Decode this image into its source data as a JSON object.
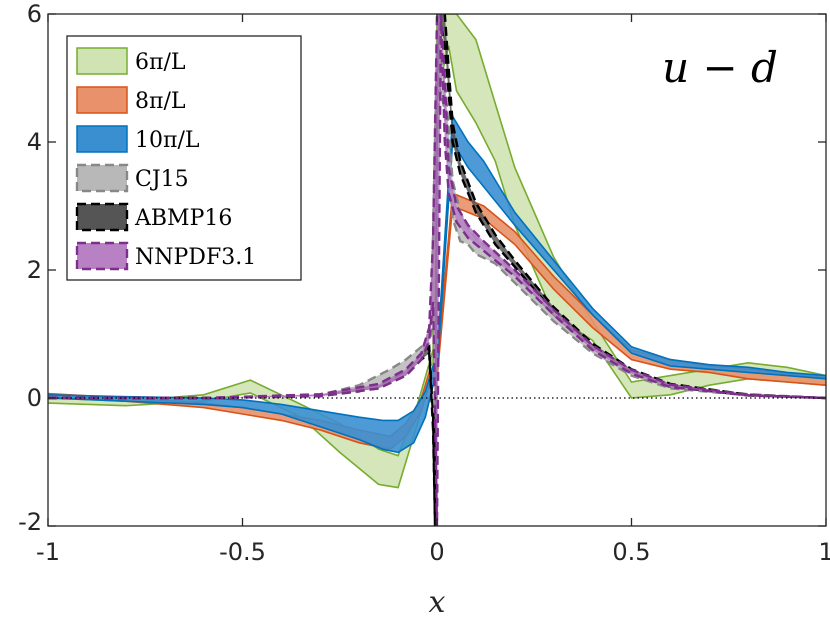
{
  "chart_data": {
    "type": "area",
    "title": "",
    "annotation": "u − d",
    "xlabel": "x",
    "ylabel": "",
    "xlim": [
      -1,
      1
    ],
    "ylim": [
      -2,
      6
    ],
    "xticks": [
      "-1",
      "-0.5",
      "0",
      "0.5",
      "1"
    ],
    "yticks": [
      "-2",
      "0",
      "2",
      "4",
      "6"
    ],
    "xtick_values": [
      -1,
      -0.5,
      0,
      0.5,
      1
    ],
    "ytick_values": [
      -2,
      0,
      2,
      4,
      6
    ],
    "legend_position": "top-left",
    "zero_line": "dotted",
    "series": [
      {
        "name": "6π/L",
        "color": "#77AC30",
        "fill": "#cfe3b3",
        "dashed": false,
        "x": [
          -1.0,
          -0.8,
          -0.6,
          -0.48,
          -0.35,
          -0.25,
          -0.15,
          -0.1,
          -0.05,
          -0.01,
          0.0,
          0.01,
          0.03,
          0.05,
          0.1,
          0.15,
          0.2,
          0.3,
          0.4,
          0.5,
          0.6,
          0.7,
          0.8,
          0.9,
          1.0
        ],
        "lower": [
          -0.08,
          -0.12,
          -0.05,
          0.08,
          -0.3,
          -0.85,
          -1.35,
          -1.4,
          -0.4,
          0.5,
          4.0,
          5.0,
          5.5,
          4.8,
          4.3,
          3.7,
          2.7,
          1.3,
          0.9,
          0.0,
          0.05,
          0.2,
          0.3,
          0.25,
          0.2
        ],
        "upper": [
          0.0,
          -0.05,
          0.05,
          0.28,
          -0.1,
          -0.4,
          -0.8,
          -0.9,
          -0.1,
          0.75,
          6.0,
          6.0,
          6.0,
          6.0,
          5.6,
          4.6,
          3.6,
          2.2,
          1.2,
          0.25,
          0.35,
          0.45,
          0.55,
          0.48,
          0.35
        ]
      },
      {
        "name": "8π/L",
        "color": "#D95319",
        "fill": "#e8916a",
        "dashed": false,
        "x": [
          -1.0,
          -0.8,
          -0.6,
          -0.5,
          -0.4,
          -0.3,
          -0.2,
          -0.12,
          -0.08,
          -0.04,
          -0.02,
          0.0,
          0.04,
          0.08,
          0.12,
          0.2,
          0.3,
          0.4,
          0.5,
          0.6,
          0.7,
          0.8,
          0.9,
          1.0
        ],
        "lower": [
          0.02,
          -0.05,
          -0.15,
          -0.25,
          -0.35,
          -0.5,
          -0.7,
          -0.8,
          -0.6,
          -0.2,
          0.2,
          0.3,
          3.0,
          2.9,
          2.8,
          2.4,
          1.7,
          1.1,
          0.6,
          0.45,
          0.4,
          0.3,
          0.25,
          0.2
        ],
        "upper": [
          0.07,
          0.0,
          -0.08,
          -0.15,
          -0.25,
          -0.35,
          -0.5,
          -0.6,
          -0.4,
          0.0,
          0.4,
          0.5,
          3.2,
          3.1,
          3.0,
          2.6,
          1.9,
          1.3,
          0.75,
          0.6,
          0.5,
          0.45,
          0.38,
          0.32
        ]
      },
      {
        "name": "10π/L",
        "color": "#0072BD",
        "fill": "#3a8fd1",
        "dashed": false,
        "x": [
          -1.0,
          -0.8,
          -0.6,
          -0.5,
          -0.4,
          -0.3,
          -0.2,
          -0.14,
          -0.1,
          -0.06,
          -0.03,
          -0.01,
          0.0,
          0.04,
          0.08,
          0.12,
          0.2,
          0.3,
          0.4,
          0.5,
          0.6,
          0.7,
          0.8,
          0.9,
          1.0
        ],
        "lower": [
          0.0,
          -0.05,
          -0.1,
          -0.15,
          -0.25,
          -0.45,
          -0.65,
          -0.8,
          -0.85,
          -0.7,
          -0.3,
          0.2,
          0.4,
          4.0,
          3.6,
          3.3,
          2.7,
          2.0,
          1.3,
          0.7,
          0.5,
          0.45,
          0.4,
          0.35,
          0.3
        ],
        "upper": [
          0.05,
          0.02,
          0.0,
          -0.03,
          -0.1,
          -0.2,
          -0.3,
          -0.35,
          -0.35,
          -0.2,
          0.1,
          0.5,
          0.6,
          4.4,
          4.0,
          3.7,
          2.9,
          2.15,
          1.4,
          0.8,
          0.6,
          0.52,
          0.48,
          0.4,
          0.35
        ]
      },
      {
        "name": "CJ15",
        "color": "#888888",
        "fill": "#b8b8b8",
        "dashed": true,
        "x": [
          -1.0,
          -0.6,
          -0.3,
          -0.2,
          -0.12,
          -0.08,
          -0.05,
          -0.03,
          -0.015,
          0.0,
          0.02,
          0.04,
          0.06,
          0.08,
          0.1,
          0.15,
          0.2,
          0.3,
          0.4,
          0.5,
          0.6,
          0.8,
          1.0
        ],
        "lower": [
          0.0,
          0.0,
          0.03,
          0.1,
          0.3,
          0.4,
          0.55,
          0.7,
          1.0,
          5.0,
          4.5,
          2.8,
          2.45,
          2.4,
          2.25,
          2.1,
          1.8,
          1.2,
          0.7,
          0.35,
          0.15,
          0.04,
          0.0
        ],
        "upper": [
          0.0,
          0.0,
          0.05,
          0.2,
          0.45,
          0.6,
          0.75,
          0.85,
          1.2,
          5.5,
          5.0,
          3.4,
          2.9,
          2.65,
          2.5,
          2.25,
          1.95,
          1.3,
          0.78,
          0.42,
          0.2,
          0.06,
          0.0
        ]
      },
      {
        "name": "ABMP16",
        "color": "#000000",
        "fill": "#555555",
        "dashed": true,
        "x": [
          -1.0,
          -0.6,
          -0.3,
          -0.15,
          -0.08,
          -0.04,
          -0.02,
          -0.01,
          -0.005,
          0.0,
          0.005,
          0.02,
          0.04,
          0.06,
          0.1,
          0.15,
          0.2,
          0.3,
          0.4,
          0.5,
          0.6,
          0.8,
          1.0
        ],
        "lower": [
          0.0,
          0.0,
          0.03,
          0.15,
          0.35,
          0.6,
          0.7,
          -0.5,
          -2.0,
          4.0,
          6.0,
          5.5,
          4.0,
          3.5,
          2.9,
          2.4,
          2.05,
          1.35,
          0.8,
          0.4,
          0.18,
          0.04,
          0.0
        ],
        "upper": [
          0.0,
          0.0,
          0.05,
          0.2,
          0.42,
          0.68,
          0.8,
          -0.3,
          -2.0,
          5.0,
          6.0,
          6.0,
          4.3,
          3.7,
          3.05,
          2.55,
          2.15,
          1.42,
          0.85,
          0.45,
          0.22,
          0.05,
          0.0
        ]
      },
      {
        "name": "NNPDF3.1",
        "color": "#7E2F8E",
        "fill": "#b781c4",
        "dashed": true,
        "x": [
          -1.0,
          -0.6,
          -0.3,
          -0.15,
          -0.08,
          -0.04,
          -0.02,
          -0.01,
          0.0,
          0.01,
          0.02,
          0.03,
          0.05,
          0.08,
          0.12,
          0.2,
          0.3,
          0.4,
          0.5,
          0.6,
          0.8,
          1.0
        ],
        "lower": [
          0.0,
          0.0,
          0.03,
          0.15,
          0.35,
          0.6,
          0.9,
          1.5,
          -2.0,
          6.0,
          4.0,
          3.2,
          2.75,
          2.5,
          2.3,
          1.9,
          1.3,
          0.75,
          0.38,
          0.17,
          0.04,
          0.0
        ],
        "upper": [
          0.0,
          0.0,
          0.06,
          0.22,
          0.45,
          0.7,
          1.1,
          2.5,
          6.0,
          6.0,
          5.0,
          3.6,
          3.0,
          2.7,
          2.45,
          2.0,
          1.38,
          0.82,
          0.44,
          0.21,
          0.05,
          0.0
        ]
      }
    ]
  }
}
